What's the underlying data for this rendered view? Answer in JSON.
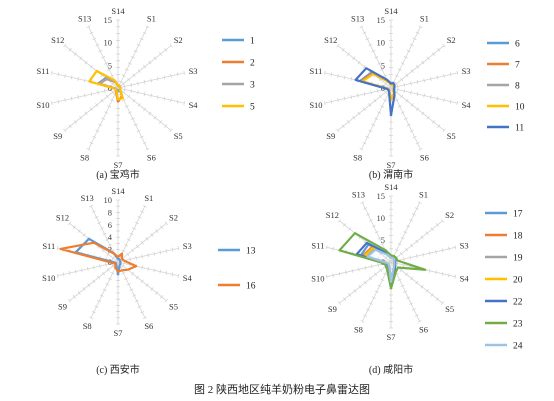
{
  "figure_caption": "图 2   陕西地区纯羊奶粉电子鼻雷达图",
  "chart_data": [
    {
      "type": "radar",
      "subtitle": "(a) 宝鸡市",
      "axes": [
        "S1",
        "S2",
        "S3",
        "S4",
        "S5",
        "S6",
        "S7",
        "S8",
        "S9",
        "S10",
        "S11",
        "S12",
        "S13",
        "S14"
      ],
      "rlim": [
        0,
        15
      ],
      "ticks": [
        "0",
        "5",
        "10",
        "15"
      ],
      "series": [
        {
          "name": "1",
          "color": "#5b9bd5",
          "values": [
            0.6,
            0.5,
            0.5,
            0.5,
            0.6,
            0.6,
            0.5,
            0.6,
            0.5,
            0.6,
            4.5,
            3.5,
            1.8,
            0.6
          ]
        },
        {
          "name": "2",
          "color": "#ed7d31",
          "values": [
            0.5,
            0.5,
            0.5,
            0.5,
            0.6,
            2.0,
            3.0,
            1.0,
            0.6,
            0.6,
            4.2,
            3.2,
            1.5,
            0.5
          ]
        },
        {
          "name": "3",
          "color": "#a5a5a5",
          "values": [
            0.6,
            0.5,
            0.5,
            0.5,
            0.6,
            0.8,
            0.8,
            0.6,
            0.5,
            0.6,
            4.3,
            3.3,
            1.6,
            0.6
          ]
        },
        {
          "name": "5",
          "color": "#ffc000",
          "values": [
            0.6,
            0.5,
            0.5,
            0.5,
            0.6,
            2.5,
            2.5,
            0.8,
            0.6,
            0.7,
            6.5,
            6.0,
            1.9,
            0.6
          ]
        }
      ]
    },
    {
      "type": "radar",
      "subtitle": "(b) 渭南市",
      "axes": [
        "S1",
        "S2",
        "S3",
        "S4",
        "S5",
        "S6",
        "S7",
        "S8",
        "S9",
        "S10",
        "S11",
        "S12",
        "S13",
        "S14"
      ],
      "rlim": [
        0,
        15
      ],
      "ticks": [
        "0",
        "5",
        "10",
        "15"
      ],
      "series": [
        {
          "name": "6",
          "color": "#5b9bd5",
          "values": [
            1.0,
            0.8,
            0.6,
            0.6,
            0.8,
            1.5,
            2.5,
            0.8,
            0.6,
            0.8,
            7.0,
            5.5,
            1.8,
            0.8
          ]
        },
        {
          "name": "7",
          "color": "#ed7d31",
          "values": [
            1.0,
            0.8,
            0.6,
            0.6,
            0.8,
            1.5,
            2.5,
            0.8,
            0.6,
            0.8,
            6.8,
            5.2,
            1.7,
            0.8
          ]
        },
        {
          "name": "8",
          "color": "#a5a5a5",
          "values": [
            1.0,
            0.8,
            0.6,
            0.6,
            0.8,
            1.5,
            2.5,
            0.8,
            0.6,
            0.8,
            6.6,
            5.0,
            1.6,
            0.8
          ]
        },
        {
          "name": "10",
          "color": "#ffc000",
          "values": [
            1.0,
            0.8,
            0.6,
            0.6,
            0.8,
            1.5,
            2.5,
            0.8,
            0.6,
            0.8,
            6.5,
            5.0,
            1.6,
            0.8
          ]
        },
        {
          "name": "11",
          "color": "#4472c4",
          "values": [
            1.2,
            1.0,
            0.8,
            0.7,
            0.9,
            1.8,
            6.0,
            1.0,
            0.7,
            0.9,
            8.0,
            7.0,
            2.0,
            1.0
          ]
        }
      ]
    },
    {
      "type": "radar",
      "subtitle": "(c) 西安市",
      "axes": [
        "S1",
        "S2",
        "S3",
        "S4",
        "S5",
        "S6",
        "S7",
        "S8",
        "S9",
        "S10",
        "S11",
        "S12",
        "S13",
        "S14"
      ],
      "rlim": [
        0,
        10
      ],
      "ticks": [
        "0",
        "2",
        "4",
        "6",
        "8",
        "10"
      ],
      "series": [
        {
          "name": "13",
          "color": "#5b9bd5",
          "values": [
            0.5,
            0.4,
            0.4,
            0.4,
            0.5,
            0.6,
            2.0,
            0.6,
            0.4,
            0.5,
            7.0,
            6.0,
            1.6,
            0.5
          ]
        },
        {
          "name": "16",
          "color": "#ed7d31",
          "values": [
            1.5,
            0.8,
            1.0,
            3.0,
            2.0,
            1.5,
            1.5,
            1.0,
            0.5,
            0.8,
            9.5,
            5.0,
            1.5,
            0.8
          ]
        }
      ]
    },
    {
      "type": "radar",
      "subtitle": "(d) 咸阳市",
      "axes": [
        "S1",
        "S2",
        "S3",
        "S4",
        "S5",
        "S6",
        "S7",
        "S8",
        "S9",
        "S10",
        "S11",
        "S12",
        "S13",
        "S14"
      ],
      "rlim": [
        0,
        15
      ],
      "ticks": [
        "0",
        "5",
        "10",
        "15"
      ],
      "series": [
        {
          "name": "17",
          "color": "#5b9bd5",
          "values": [
            1.0,
            1.0,
            0.8,
            0.8,
            1.0,
            1.5,
            4.5,
            1.0,
            0.8,
            1.0,
            7.0,
            6.5,
            2.0,
            1.0
          ]
        },
        {
          "name": "18",
          "color": "#ed7d31",
          "values": [
            1.0,
            1.0,
            0.8,
            0.8,
            1.0,
            1.5,
            4.5,
            1.0,
            0.8,
            1.0,
            6.5,
            5.5,
            2.0,
            1.0
          ]
        },
        {
          "name": "19",
          "color": "#a5a5a5",
          "values": [
            1.0,
            1.0,
            0.8,
            0.8,
            1.0,
            1.5,
            4.5,
            1.0,
            0.8,
            1.0,
            6.0,
            5.0,
            2.0,
            1.0
          ]
        },
        {
          "name": "20",
          "color": "#ffc000",
          "values": [
            1.0,
            1.0,
            0.8,
            0.8,
            1.0,
            1.5,
            4.5,
            1.0,
            0.8,
            1.0,
            6.2,
            5.2,
            2.0,
            1.0
          ]
        },
        {
          "name": "22",
          "color": "#4472c4",
          "values": [
            1.2,
            1.2,
            1.0,
            1.0,
            1.2,
            2.0,
            5.0,
            1.2,
            1.0,
            1.2,
            8.0,
            7.0,
            2.2,
            1.2
          ]
        },
        {
          "name": "23",
          "color": "#70ad47",
          "values": [
            1.5,
            1.5,
            1.5,
            8.0,
            2.0,
            2.5,
            6.0,
            2.0,
            1.5,
            1.5,
            12.0,
            10.5,
            3.0,
            1.5
          ]
        },
        {
          "name": "24",
          "color": "#9dc3e6",
          "values": [
            1.0,
            1.0,
            0.8,
            0.8,
            1.0,
            1.5,
            4.5,
            1.0,
            0.8,
            1.0,
            5.5,
            4.5,
            1.8,
            1.0
          ]
        }
      ]
    }
  ]
}
